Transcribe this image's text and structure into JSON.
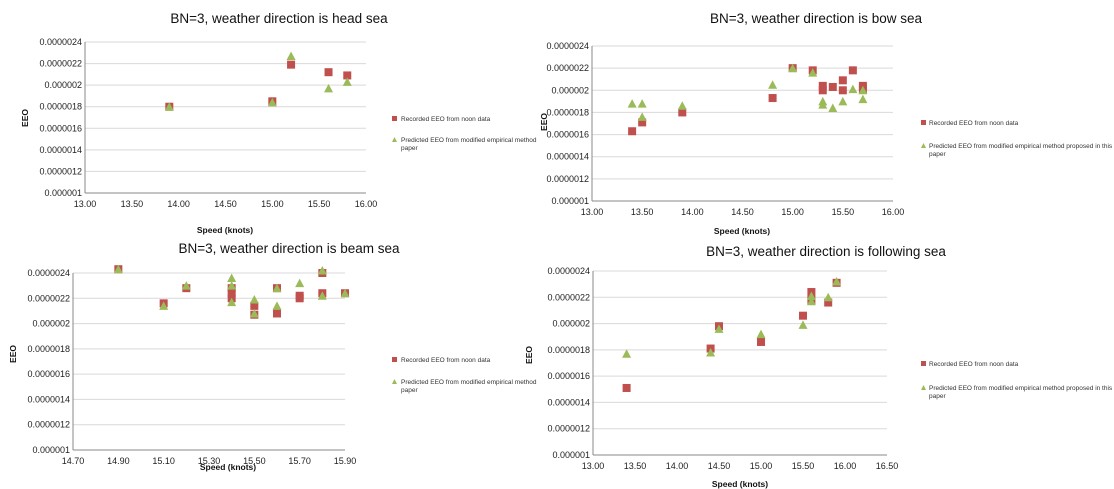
{
  "series_styles": {
    "recorded": {
      "color": "#c0504d",
      "marker": "square"
    },
    "predicted": {
      "color": "#9bbb59",
      "marker": "triangle"
    }
  },
  "chart_data": [
    {
      "type": "scatter",
      "title": "BN=3, weather direction is head sea",
      "xlabel": "Speed (knots)",
      "ylabel": "EEO",
      "xlim": [
        13.0,
        16.0
      ],
      "ylim": [
        1e-06,
        2.4e-06
      ],
      "xticks": [
        "13.00",
        "13.50",
        "14.00",
        "14.50",
        "15.00",
        "15.50",
        "16.00"
      ],
      "yticks": [
        "0.000001",
        "0.0000012",
        "0.0000014",
        "0.0000016",
        "0.0000018",
        "0.000002",
        "0.0000022",
        "0.0000024"
      ],
      "legend_position": "right",
      "legend": [
        "Recorded EEO from noon data",
        "Predicted EEO from modified empirical method",
        "paper"
      ],
      "series": [
        {
          "name": "Recorded EEO from noon data",
          "style": "recorded",
          "x": [
            13.9,
            15.0,
            15.2,
            15.6,
            15.8
          ],
          "y": [
            1.8e-06,
            1.85e-06,
            2.19e-06,
            2.12e-06,
            2.09e-06
          ]
        },
        {
          "name": "Predicted EEO from modified empirical method paper",
          "style": "predicted",
          "x": [
            13.9,
            15.0,
            15.2,
            15.6,
            15.8
          ],
          "y": [
            1.8e-06,
            1.84e-06,
            2.27e-06,
            1.97e-06,
            2.03e-06
          ]
        }
      ]
    },
    {
      "type": "scatter",
      "title": "BN=3, weather direction is bow sea",
      "xlabel": "Speed (knots)",
      "ylabel": "EEO",
      "xlim": [
        13.0,
        16.0
      ],
      "ylim": [
        1e-06,
        2.4e-06
      ],
      "xticks": [
        "13.00",
        "13.50",
        "14.00",
        "14.50",
        "15.00",
        "15.50",
        "16.00"
      ],
      "yticks": [
        "0.000001",
        "0.0000012",
        "0.0000014",
        "0.0000016",
        "0.0000018",
        "0.000002",
        "0.0000022",
        "0.0000024"
      ],
      "legend_position": "right",
      "legend": [
        "Recorded EEO from noon data",
        "Predicted EEO from modified empirical method proposed in this",
        "paper"
      ],
      "series": [
        {
          "name": "Recorded EEO from noon data",
          "style": "recorded",
          "x": [
            13.4,
            13.5,
            13.9,
            14.8,
            15.0,
            15.2,
            15.3,
            15.3,
            15.4,
            15.5,
            15.5,
            15.6,
            15.7,
            15.7
          ],
          "y": [
            1.63e-06,
            1.71e-06,
            1.8e-06,
            1.93e-06,
            2.2e-06,
            2.18e-06,
            2.04e-06,
            2e-06,
            2.03e-06,
            2.09e-06,
            2e-06,
            2.18e-06,
            2.04e-06,
            2.01e-06
          ]
        },
        {
          "name": "Predicted EEO from modified empirical method proposed in this paper",
          "style": "predicted",
          "x": [
            13.4,
            13.5,
            13.5,
            13.9,
            14.8,
            15.0,
            15.2,
            15.3,
            15.3,
            15.4,
            15.5,
            15.6,
            15.7,
            15.7
          ],
          "y": [
            1.88e-06,
            1.88e-06,
            1.76e-06,
            1.86e-06,
            2.05e-06,
            2.2e-06,
            2.16e-06,
            1.9e-06,
            1.87e-06,
            1.84e-06,
            1.9e-06,
            2.01e-06,
            1.92e-06,
            2e-06
          ]
        }
      ]
    },
    {
      "type": "scatter",
      "title": "BN=3, weather direction is beam sea",
      "xlabel": "Speed (knots)",
      "ylabel": "EEO",
      "xlim": [
        14.7,
        15.9
      ],
      "ylim": [
        1e-06,
        2.4e-06
      ],
      "xticks": [
        "14.70",
        "14.90",
        "15.10",
        "15.30",
        "15.50",
        "15.70",
        "15.90"
      ],
      "yticks": [
        "0.000001",
        "0.0000012",
        "0.0000014",
        "0.0000016",
        "0.0000018",
        "0.000002",
        "0.0000022",
        "0.0000024"
      ],
      "legend_position": "right",
      "legend": [
        "Recorded EEO from noon data",
        "Predicted EEO from modified empirical method",
        "paper"
      ],
      "series": [
        {
          "name": "Recorded EEO from noon data",
          "style": "recorded",
          "x": [
            14.9,
            15.1,
            15.2,
            15.4,
            15.4,
            15.4,
            15.5,
            15.5,
            15.6,
            15.6,
            15.7,
            15.7,
            15.8,
            15.8,
            15.9
          ],
          "y": [
            2.43e-06,
            2.16e-06,
            2.28e-06,
            2.28e-06,
            2.24e-06,
            2.2e-06,
            2.14e-06,
            2.07e-06,
            2.28e-06,
            2.08e-06,
            2.2e-06,
            2.22e-06,
            2.4e-06,
            2.24e-06,
            2.24e-06
          ]
        },
        {
          "name": "Predicted EEO from modified empirical method paper",
          "style": "predicted",
          "x": [
            14.9,
            15.1,
            15.2,
            15.4,
            15.4,
            15.4,
            15.5,
            15.5,
            15.6,
            15.6,
            15.7,
            15.8,
            15.8,
            15.9
          ],
          "y": [
            2.43e-06,
            2.14e-06,
            2.3e-06,
            2.36e-06,
            2.3e-06,
            2.17e-06,
            2.19e-06,
            2.08e-06,
            2.28e-06,
            2.14e-06,
            2.32e-06,
            2.42e-06,
            2.22e-06,
            2.24e-06
          ]
        }
      ]
    },
    {
      "type": "scatter",
      "title": "BN=3, weather direction is following sea",
      "xlabel": "Speed (knots)",
      "ylabel": "EEO",
      "xlim": [
        13.0,
        16.5
      ],
      "ylim": [
        1e-06,
        2.4e-06
      ],
      "xticks": [
        "13.00",
        "13.50",
        "14.00",
        "14.50",
        "15.00",
        "15.50",
        "16.00",
        "16.50"
      ],
      "yticks": [
        "0.000001",
        "0.0000012",
        "0.0000014",
        "0.0000016",
        "0.0000018",
        "0.000002",
        "0.0000022",
        "0.0000024"
      ],
      "legend_position": "right",
      "legend": [
        "Recorded EEO from noon data",
        "Predicted EEO from modified empirical method proposed in this",
        "paper"
      ],
      "series": [
        {
          "name": "Recorded EEO from noon data",
          "style": "recorded",
          "x": [
            13.4,
            14.4,
            14.5,
            15.0,
            15.5,
            15.6,
            15.6,
            15.8,
            15.9
          ],
          "y": [
            1.51e-06,
            1.81e-06,
            1.98e-06,
            1.86e-06,
            2.06e-06,
            2.24e-06,
            2.18e-06,
            2.16e-06,
            2.31e-06
          ]
        },
        {
          "name": "Predicted EEO from modified empirical method proposed in this paper",
          "style": "predicted",
          "x": [
            13.4,
            14.4,
            14.5,
            15.0,
            15.5,
            15.6,
            15.6,
            15.8,
            15.9
          ],
          "y": [
            1.77e-06,
            1.78e-06,
            1.96e-06,
            1.92e-06,
            1.99e-06,
            2.21e-06,
            2.17e-06,
            2.2e-06,
            2.32e-06
          ]
        }
      ]
    }
  ]
}
